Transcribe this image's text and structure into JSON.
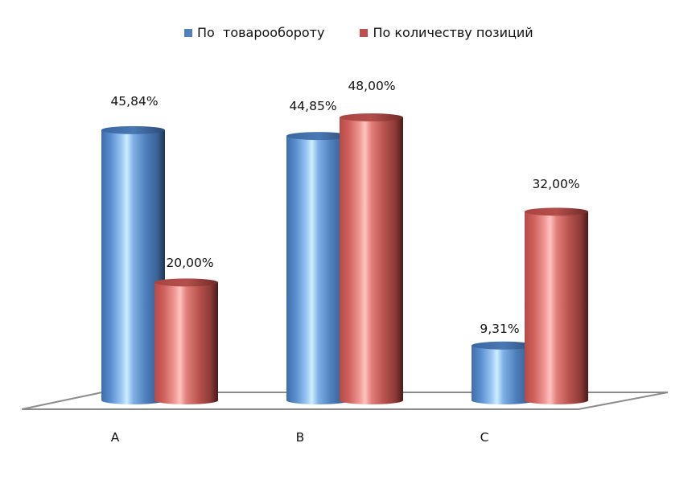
{
  "chart_data": {
    "type": "bar",
    "style": "3d-cylinder",
    "title": "",
    "xlabel": "",
    "ylabel": "",
    "categories": [
      "A",
      "B",
      "C"
    ],
    "series": [
      {
        "name": "По  товарообороту",
        "color": "#4F81BD",
        "values": [
          45.84,
          44.85,
          9.31
        ],
        "labels": [
          "45,84%",
          "44,85%",
          "9,31%"
        ]
      },
      {
        "name": "По количеству позиций",
        "color": "#C0504D",
        "values": [
          20.0,
          48.0,
          32.0
        ],
        "labels": [
          "20,00%",
          "48,00%",
          "32,00%"
        ]
      }
    ],
    "legend_position": "top",
    "grid": false,
    "y_axis_visible": false,
    "ylim": [
      0,
      50
    ]
  },
  "legend": {
    "items": [
      {
        "label": "По  товарообороту",
        "color": "#4F81BD"
      },
      {
        "label": "По количеству позиций",
        "color": "#C0504D"
      }
    ]
  }
}
